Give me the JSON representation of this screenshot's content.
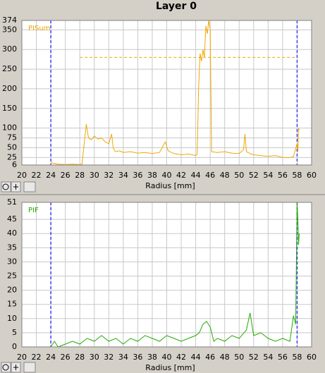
{
  "title": "Layer 0",
  "chart_data": [
    {
      "type": "line",
      "xlabel": "Radius [mm]",
      "xlim": [
        20,
        60
      ],
      "xticks": [
        20,
        22,
        24,
        26,
        28,
        30,
        32,
        34,
        36,
        38,
        40,
        42,
        44,
        46,
        48,
        50,
        52,
        54,
        56,
        58,
        60
      ],
      "ylim": [
        6,
        374
      ],
      "yticks": [
        6,
        25,
        50,
        75,
        100,
        150,
        200,
        250,
        300,
        350,
        374
      ],
      "grid": true,
      "vlines": [
        24,
        58
      ],
      "vline_color": "#3c3cff",
      "hline": {
        "value": 280,
        "from": 28,
        "to": 58
      },
      "series": [
        {
          "name": "PISum",
          "color": "#f0a800",
          "x": [
            24,
            25,
            26,
            27,
            28,
            28.3,
            28.6,
            28.9,
            29.2,
            29.6,
            30,
            30.5,
            31,
            31.5,
            32,
            32.4,
            32.6,
            32.9,
            33.5,
            34,
            35,
            36,
            37,
            38,
            39,
            39.5,
            39.8,
            40.2,
            41,
            42,
            43,
            44,
            44.2,
            44.4,
            44.6,
            44.8,
            45,
            45.2,
            45.4,
            45.6,
            45.8,
            46,
            46.2,
            47,
            48,
            49,
            50,
            50.6,
            50.8,
            51,
            51.5,
            52,
            53,
            54,
            55,
            56,
            57,
            57.5,
            57.8,
            58,
            58.1,
            58.2,
            58.3
          ],
          "values": [
            12,
            8,
            7,
            8,
            7,
            8,
            60,
            110,
            75,
            70,
            80,
            72,
            75,
            65,
            60,
            85,
            50,
            40,
            42,
            38,
            40,
            36,
            38,
            35,
            38,
            55,
            65,
            42,
            35,
            32,
            34,
            30,
            33,
            200,
            290,
            270,
            300,
            280,
            360,
            340,
            374,
            350,
            40,
            38,
            40,
            36,
            35,
            45,
            85,
            40,
            35,
            32,
            30,
            28,
            30,
            25,
            25,
            27,
            48,
            60,
            40,
            100,
            95
          ]
        }
      ]
    },
    {
      "type": "line",
      "xlabel": "Radius [mm]",
      "xlim": [
        20,
        60
      ],
      "xticks": [
        20,
        22,
        24,
        26,
        28,
        30,
        32,
        34,
        36,
        38,
        40,
        42,
        44,
        46,
        48,
        50,
        52,
        54,
        56,
        58,
        60
      ],
      "ylim": [
        0,
        51
      ],
      "yticks": [
        0,
        5,
        10,
        15,
        20,
        25,
        30,
        35,
        40,
        45,
        51
      ],
      "grid": true,
      "vlines": [
        24,
        58
      ],
      "vline_color": "#3c3cff",
      "series": [
        {
          "name": "PIF",
          "color": "#22aa00",
          "x": [
            24,
            24.5,
            25,
            26,
            27,
            28,
            29,
            30,
            31,
            32,
            33,
            34,
            35,
            36,
            37,
            38,
            39,
            40,
            41,
            42,
            43,
            44,
            44.5,
            45,
            45.5,
            46,
            46.5,
            47,
            48,
            49,
            50,
            51,
            51.5,
            52,
            53,
            54,
            55,
            56,
            57,
            57.5,
            57.8,
            58,
            58.1,
            58.2,
            58.3
          ],
          "values": [
            0,
            2,
            0,
            1,
            2,
            1,
            3,
            2,
            4,
            2,
            3,
            1,
            3,
            2,
            4,
            3,
            2,
            4,
            3,
            2,
            3,
            4,
            5,
            8,
            9,
            7,
            2,
            3,
            2,
            4,
            3,
            6,
            12,
            4,
            5,
            3,
            2,
            3,
            2,
            11,
            8,
            51,
            45,
            36,
            40
          ]
        }
      ]
    }
  ]
}
